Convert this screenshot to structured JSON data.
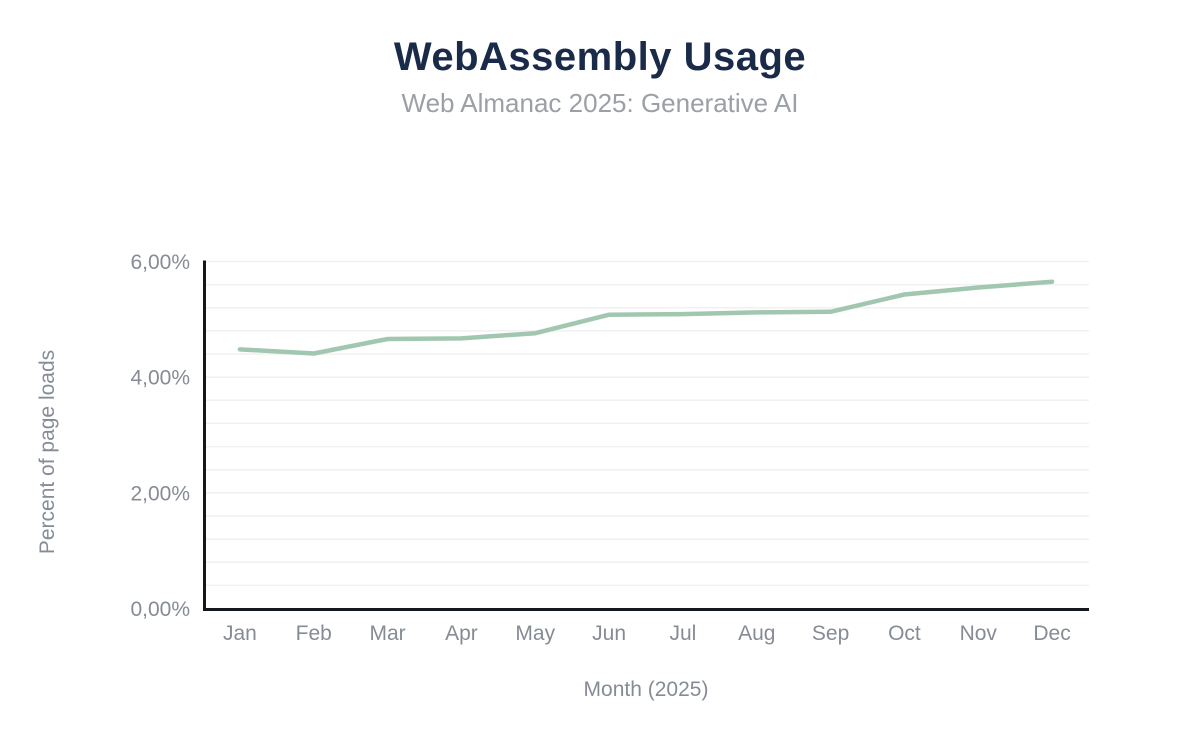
{
  "page": {
    "background": "#ffffff"
  },
  "chart_data": {
    "type": "line",
    "title": "WebAssembly Usage",
    "subtitle": "Web Almanac 2025: Generative AI",
    "xlabel": "Month (2025)",
    "ylabel": "Percent of page loads",
    "categories": [
      "Jan",
      "Feb",
      "Mar",
      "Apr",
      "May",
      "Jun",
      "Jul",
      "Aug",
      "Sep",
      "Oct",
      "Nov",
      "Dec"
    ],
    "series": [
      {
        "name": "WebAssembly usage",
        "values": [
          4.48,
          4.41,
          4.66,
          4.67,
          4.76,
          5.08,
          5.09,
          5.12,
          5.13,
          5.43,
          5.55,
          5.65
        ]
      }
    ],
    "ylim": [
      0,
      6
    ],
    "yticks": {
      "values": [
        0,
        2,
        4,
        6
      ],
      "labels": [
        "0,00%",
        "2,00%",
        "4,00%",
        "6,00%"
      ]
    },
    "minor_grid_step": 0.4,
    "grid": true,
    "legend": "none",
    "markers": false,
    "colors": {
      "line": "#a2c7b1",
      "title": "#1a2b49",
      "subtitle": "#9aa0a6",
      "axis_text": "#868c95",
      "grid": "#f0f1f2",
      "axis_line": "#14181d"
    }
  }
}
